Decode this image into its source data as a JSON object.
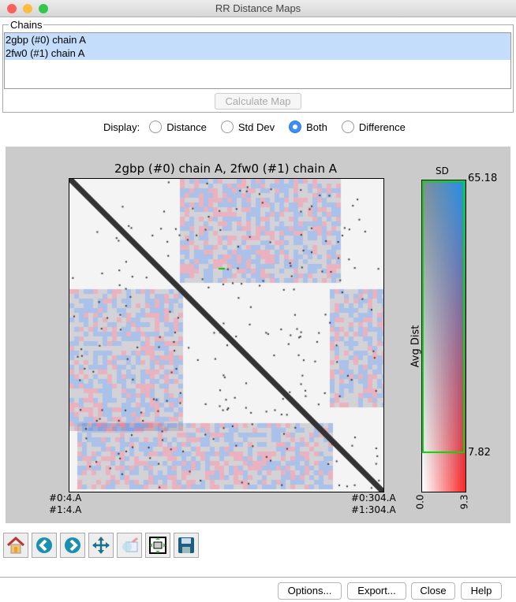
{
  "window": {
    "title": "RR Distance Maps"
  },
  "chains": {
    "label": "Chains",
    "items": [
      "2gbp (#0) chain A",
      "2fw0 (#1) chain A"
    ],
    "calculate_label": "Calculate Map"
  },
  "display": {
    "label": "Display:",
    "options": [
      "Distance",
      "Std Dev",
      "Both",
      "Difference"
    ],
    "selected": "Both"
  },
  "plot": {
    "title": "2gbp (#0) chain A, 2fw0 (#1) chain A",
    "x_start": [
      "#0:4.A",
      "#1:4.A"
    ],
    "x_end": [
      "#0:304.A",
      "#1:304.A"
    ],
    "colorbar": {
      "top_label": "SD",
      "side_label": "Avg Dist",
      "max": "65.18",
      "threshold": "7.82",
      "x_min": "0.0",
      "x_max": "9.3",
      "colors": {
        "low": "#ffffff",
        "sd_high": "#ff2020",
        "dist_high": "#1a90f0",
        "threshold_box": "#00e000"
      }
    }
  },
  "toolbar": [
    "home-icon",
    "back-icon",
    "forward-icon",
    "pan-icon",
    "zoom-icon",
    "subplots-icon",
    "save-icon"
  ],
  "buttons": {
    "options": "Options...",
    "export": "Export...",
    "close": "Close",
    "help": "Help"
  }
}
